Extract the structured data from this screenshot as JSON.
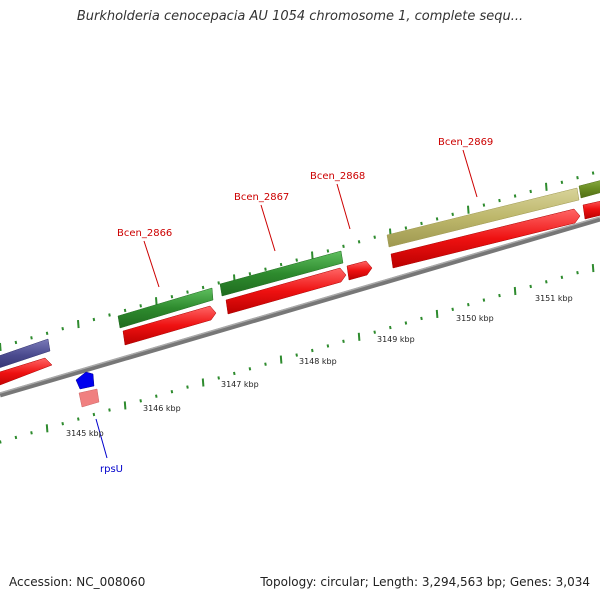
{
  "title": "Burkholderia cenocepacia AU 1054 chromosome 1, complete sequ...",
  "footer": {
    "accession": "Accession: NC_008060",
    "summary": "Topology: circular; Length: 3,294,563 bp; Genes: 3,034"
  },
  "genes": [
    {
      "label": "Bcen_2866",
      "label_color": "#cc0000"
    },
    {
      "label": "Bcen_2867",
      "label_color": "#cc0000"
    },
    {
      "label": "Bcen_2868",
      "label_color": "#cc0000"
    },
    {
      "label": "Bcen_2869",
      "label_color": "#cc0000"
    },
    {
      "label": "rpsU",
      "label_color": "#0000cc"
    }
  ],
  "ticks": [
    {
      "label": "3145 kbp"
    },
    {
      "label": "3146 kbp"
    },
    {
      "label": "3147 kbp"
    },
    {
      "label": "3148 kbp"
    },
    {
      "label": "3149 kbp"
    },
    {
      "label": "3150 kbp"
    },
    {
      "label": "3151 kbp"
    }
  ],
  "colors": {
    "green_feature": "#2e8b2e",
    "khaki_feature": "#bdb76b",
    "olive_feature": "#6b8e23",
    "purple_feature": "#4b4b8f",
    "red_cds": "#ee1111",
    "blue_feature": "#0000ee",
    "pink_feature": "#f08080",
    "backbone": "#888888",
    "tick": "#2e8b2e"
  }
}
